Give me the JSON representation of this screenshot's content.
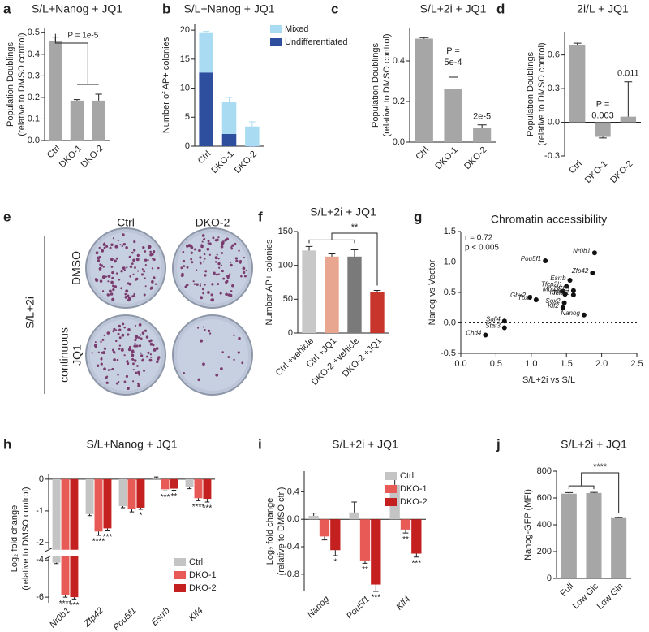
{
  "chart_data": [
    {
      "panel": "a",
      "type": "bar",
      "title": "S/L+Nanog + JQ1",
      "ylabel": [
        "Population Doublings",
        "(relative to DMSO control)"
      ],
      "categories": [
        "Ctrl",
        "DKO-1",
        "DKO-2"
      ],
      "values": [
        0.46,
        0.185,
        0.185
      ],
      "errors": [
        0.02,
        0.005,
        0.03
      ],
      "color": "#a6a6a6",
      "ylim": [
        0,
        0.52
      ],
      "yticks": [
        {
          "value": 0,
          "label": "0.0"
        },
        0.1,
        0.2,
        0.3,
        0.4,
        0.5
      ],
      "annotations": [
        "P = 1e-5"
      ]
    },
    {
      "panel": "b",
      "type": "stacked_bar",
      "title": "S/L+Nanog + JQ1",
      "ylabel": [
        "Number of AP+ colonies"
      ],
      "categories": [
        "Ctrl",
        "DKO-1",
        "DKO-2"
      ],
      "series": [
        {
          "name": "Undifferentiated",
          "color": "#2e4f9e",
          "values": [
            12.7,
            2.1,
            0
          ],
          "errors": [
            2.8,
            0.4,
            0
          ]
        },
        {
          "name": "Mixed",
          "color": "#a9dcf2",
          "values": [
            6.8,
            5.6,
            3.4
          ],
          "errors": [
            0.3,
            0.7,
            0.8
          ]
        }
      ],
      "ylim": [
        0,
        21
      ],
      "yticks": [
        0,
        5,
        10,
        15,
        20
      ],
      "legend": "right"
    },
    {
      "panel": "c",
      "type": "bar",
      "title": "S/L+2i + JQ1",
      "ylabel": [
        "Population Doublings",
        "(relative to DMSO control)"
      ],
      "categories": [
        "Ctrl",
        "DKO-1",
        "DKO-2"
      ],
      "values": [
        0.51,
        0.26,
        0.07
      ],
      "errors": [
        0.005,
        0.06,
        0.015
      ],
      "color": "#a6a6a6",
      "ylim": [
        0,
        0.56
      ],
      "yticks": [
        {
          "value": 0,
          "label": "0.0"
        },
        0.2,
        0.4
      ],
      "annotations": [
        "P =",
        "5e-4",
        "2e-5"
      ]
    },
    {
      "panel": "d",
      "type": "bar",
      "title": "2i/L + JQ1",
      "ylabel": [
        "Population Doublings",
        "(relative to DMSO control)"
      ],
      "categories": [
        "Ctrl",
        "DKO-1",
        "DKO-2"
      ],
      "values": [
        0.69,
        -0.13,
        0.05
      ],
      "errors": [
        0.015,
        0.01,
        0.31
      ],
      "color": "#a6a6a6",
      "ylim": [
        -0.3,
        0.8
      ],
      "yticks": [
        -0.3,
        {
          "value": 0,
          "label": "0.0"
        },
        0.3,
        0.6
      ],
      "annotations": [
        "P =",
        "0.003",
        "0.011"
      ]
    },
    {
      "panel": "e",
      "type": "image",
      "columns": [
        "Ctrl",
        "DKO-2"
      ],
      "rows": [
        [
          "DMSO"
        ],
        [
          "continuous",
          "JQ1"
        ]
      ],
      "group": "S/L+2i"
    },
    {
      "panel": "f",
      "type": "bar",
      "title": "S/L+2i + JQ1",
      "ylabel": [
        "Number AP+ colonies"
      ],
      "categories": [
        "Ctrl +vehicle",
        "Ctrl +JQ1",
        "DKO-2 +vehicle",
        "DKO-2 +JQ1"
      ],
      "values": [
        122,
        113,
        113,
        60
      ],
      "errors": [
        6,
        4,
        10,
        3
      ],
      "colors": [
        "#c8c8c8",
        "#e8a58f",
        "#7a7a7a",
        "#c8352b"
      ],
      "ylim": [
        0,
        150
      ],
      "yticks": [
        0,
        50,
        100,
        150
      ],
      "annotations": [
        "**"
      ]
    },
    {
      "panel": "g",
      "type": "scatter",
      "title": "Chromatin accessibility",
      "xlabel": "S/L+2i vs S/L",
      "ylabel": [
        "Nanog vs Vector"
      ],
      "labels": [
        "Nr0b1",
        "Pou5f1",
        "Zfp42",
        "Esrrb",
        "Tfcp2l1",
        "Mbd3",
        "Klf5",
        "Klf4",
        "Tcf7l1",
        "Gbx2",
        "Tbx3",
        "Sox2",
        "Klf2",
        "Nanog",
        "Sall4",
        "Chd4",
        "Stat3"
      ],
      "x": [
        1.9,
        1.2,
        1.87,
        1.55,
        1.5,
        1.45,
        1.6,
        1.48,
        1.6,
        0.98,
        1.07,
        1.47,
        1.45,
        1.75,
        0.62,
        0.35,
        0.62
      ],
      "y": [
        1.15,
        1.02,
        0.82,
        0.7,
        0.6,
        0.52,
        0.53,
        0.47,
        0.46,
        0.42,
        0.38,
        0.33,
        0.25,
        0.13,
        0.03,
        -0.2,
        -0.08
      ],
      "color": "#111111",
      "xlim": [
        0,
        2.5
      ],
      "xticks": [
        {
          "value": 0,
          "label": "0.0"
        },
        0.5,
        {
          "value": 1,
          "label": "1.0"
        },
        1.5,
        {
          "value": 2,
          "label": "2.0"
        },
        2.5
      ],
      "ylim": [
        -0.5,
        1.5
      ],
      "yticks": [
        -0.5,
        {
          "value": 0,
          "label": "0.0"
        },
        0.5,
        {
          "value": 1,
          "label": "1.0"
        },
        1.5
      ],
      "annotations": [
        "r = 0.72",
        "p < 0.005"
      ]
    },
    {
      "panel": "h",
      "type": "grouped_bar",
      "title": "S/L+Nanog + JQ1",
      "ylabel": [
        "Log₂ fold change",
        "(relative to DMSO control)"
      ],
      "categories": [
        "Nr0b1",
        "Zfp42",
        "Pou5f1",
        "Esrrb",
        "Klf4"
      ],
      "series": [
        {
          "name": "Ctrl",
          "color": "#c4c4c4",
          "values": [
            -4.15,
            -1.1,
            -0.85,
            0.02,
            -0.25
          ],
          "errors": [
            0.05,
            0.05,
            0.05,
            0.05,
            0.05
          ],
          "stars": [
            null,
            null,
            null,
            null,
            null
          ]
        },
        {
          "name": "DKO-1",
          "color": "#e85a55",
          "values": [
            -5.9,
            -1.65,
            -0.95,
            -0.32,
            -0.6
          ],
          "errors": [
            0.1,
            0.12,
            0.08,
            0.05,
            0.08
          ],
          "stars": [
            "****",
            "****",
            null,
            "***",
            "****"
          ]
        },
        {
          "name": "DKO-2",
          "color": "#c4201f",
          "values": [
            -6.0,
            -1.55,
            -0.9,
            -0.3,
            -0.62
          ],
          "errors": [
            0.1,
            0.08,
            0.05,
            0.05,
            0.1
          ],
          "stars": [
            "***",
            "***",
            "*",
            "**",
            "***"
          ]
        }
      ],
      "ylim": [
        -6.3,
        0.15
      ],
      "ybreak": [
        -2.2,
        -3.85
      ],
      "yticks": [
        0,
        -1,
        -2,
        -4,
        -6
      ],
      "legend": "lower right"
    },
    {
      "panel": "i",
      "type": "grouped_bar",
      "title": "S/L+2i + JQ1",
      "ylabel": [
        "Log₂ fold change",
        "(relative to DMSO ctrl)"
      ],
      "categories": [
        "Nanog",
        "Pou5f1",
        "Klf4"
      ],
      "series": [
        {
          "name": "Ctrl",
          "color": "#c4c4c4",
          "values": [
            0.05,
            0.1,
            0.5
          ],
          "errors": [
            0.04,
            0.15,
            0.1
          ],
          "stars": [
            null,
            null,
            null
          ]
        },
        {
          "name": "DKO-1",
          "color": "#e85a55",
          "values": [
            -0.25,
            -0.6,
            -0.15
          ],
          "errors": [
            0.05,
            0.04,
            0.05
          ],
          "stars": [
            null,
            "**",
            "**"
          ]
        },
        {
          "name": "DKO-2",
          "color": "#c4201f",
          "values": [
            -0.45,
            -0.95,
            -0.5
          ],
          "errors": [
            0.08,
            0.1,
            0.05
          ],
          "stars": [
            "*",
            "***",
            "***"
          ]
        }
      ],
      "ylim": [
        -1.05,
        0.7
      ],
      "yticks": [
        -0.8,
        -0.4,
        {
          "value": 0,
          "label": "0.0"
        },
        0.4
      ],
      "legend": "upper right"
    },
    {
      "panel": "j",
      "type": "bar",
      "title": "S/L+2i + JQ1",
      "ylabel": [
        "Nanog-GFP (MFI)"
      ],
      "categories": [
        "Full",
        "Low Glc",
        "Low Gln"
      ],
      "values": [
        632,
        637,
        450
      ],
      "errors": [
        8,
        5,
        4
      ],
      "color": "#a6a6a6",
      "ylim": [
        0,
        800
      ],
      "yticks": [
        0,
        200,
        400,
        600,
        800
      ],
      "annotations": [
        "****"
      ]
    }
  ]
}
